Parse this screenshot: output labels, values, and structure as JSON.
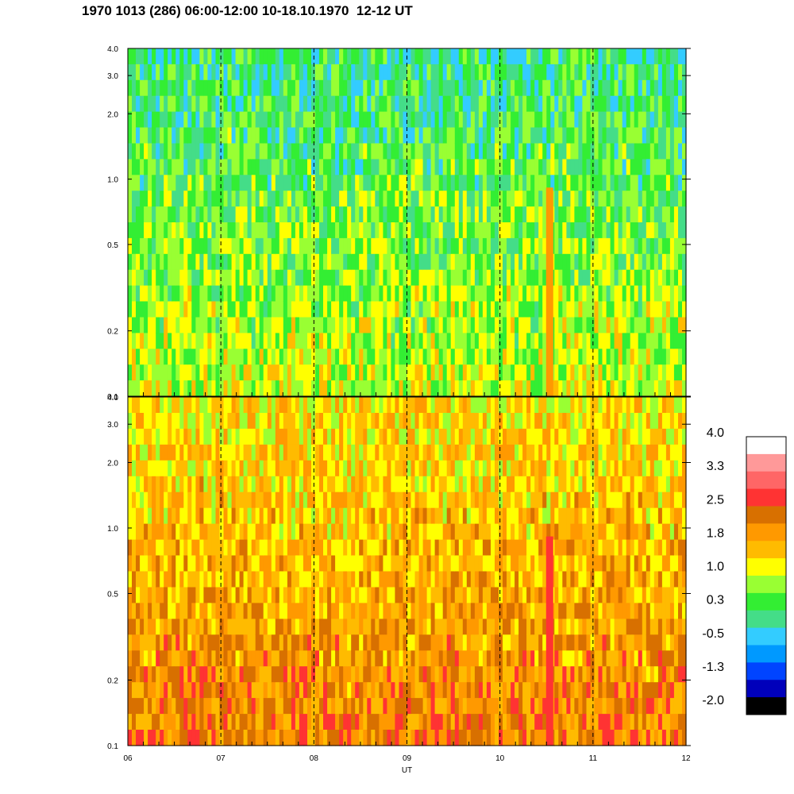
{
  "title": "1970 1013 (286) 06:00-12:00 10-18.10.1970  12-12 UT",
  "chart_data": [
    {
      "type": "heatmap",
      "panel": "upper",
      "x_range": [
        6,
        12
      ],
      "y_range": [
        0.1,
        4.0
      ],
      "y_scale": "log",
      "x_tick_labels": [],
      "y_tick_labels": [
        "4.0",
        "3.0",
        "2.0",
        "1.0",
        "0.5",
        "0.2",
        "0.1"
      ],
      "y_tick_values": [
        4.0,
        3.0,
        2.0,
        1.0,
        0.5,
        0.2,
        0.1
      ],
      "dominant_level": 0.6,
      "dashed_hour_lines": [
        7,
        8,
        9,
        10,
        11
      ]
    },
    {
      "type": "heatmap",
      "panel": "lower",
      "x_range": [
        6,
        12
      ],
      "y_range": [
        0.1,
        4.0
      ],
      "y_scale": "log",
      "x_tick_labels": [
        "06",
        "07",
        "08",
        "09",
        "10",
        "11",
        "12"
      ],
      "x_tick_values": [
        6,
        7,
        8,
        9,
        10,
        11,
        12
      ],
      "xlabel": "UT",
      "y_tick_labels": [
        "4.0",
        "3.0",
        "2.0",
        "1.0",
        "0.5",
        "0.2",
        "0.1"
      ],
      "y_tick_values": [
        4.0,
        3.0,
        2.0,
        1.0,
        0.5,
        0.2,
        0.1
      ],
      "dominant_level": 1.6,
      "dashed_hour_lines": [
        7,
        8,
        9,
        10,
        11
      ]
    }
  ],
  "colorbar": {
    "labels": [
      "4.0",
      "3.3",
      "2.5",
      "1.8",
      "1.0",
      "0.3",
      "-0.5",
      "-1.3",
      "-2.0"
    ],
    "colors": [
      "#ffffff",
      "#ff9999",
      "#ff6666",
      "#ff3333",
      "#d87000",
      "#ff9900",
      "#ffbb00",
      "#ffff00",
      "#99ff33",
      "#33ee33",
      "#44dd88",
      "#33ccff",
      "#0099ff",
      "#0044ff",
      "#0000bb",
      "#000000"
    ]
  }
}
